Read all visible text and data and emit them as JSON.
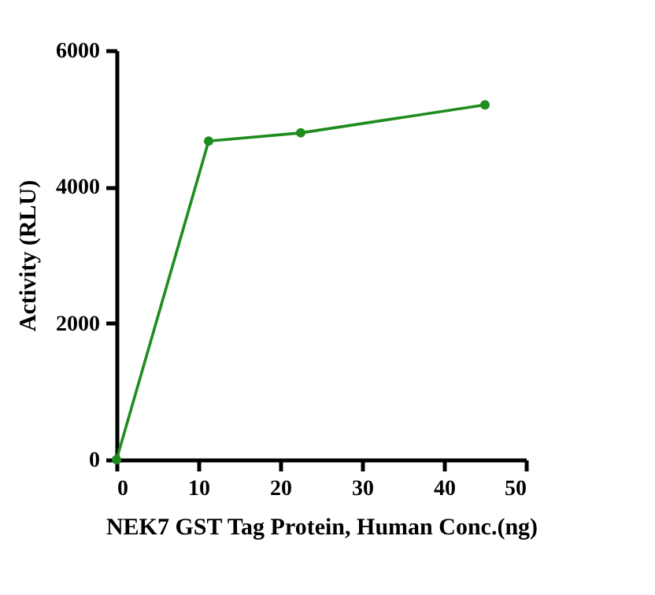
{
  "chart_data": {
    "type": "line",
    "xlabel": "NEK7 GST Tag Protein, Human Conc.(ng)",
    "ylabel": "Activity (RLU)",
    "x": [
      0,
      11.25,
      22.5,
      45
    ],
    "series": [
      {
        "color": "#1e8c1e",
        "values": [
          0,
          4670,
          4790,
          5200
        ]
      }
    ],
    "xlim": [
      0,
      50
    ],
    "xticks": [
      0,
      10,
      20,
      30,
      40,
      50
    ],
    "ylim": [
      0,
      6000
    ],
    "yticks": [
      0,
      2000,
      4000,
      6000
    ],
    "grid": false,
    "legend": false,
    "marker": "circle",
    "line_style": "solid"
  }
}
